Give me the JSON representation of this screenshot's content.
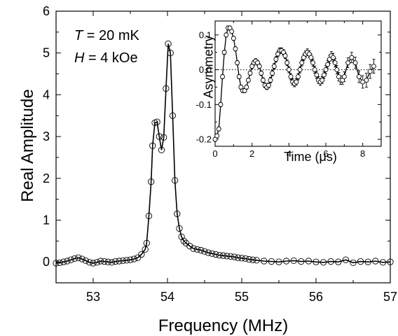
{
  "chart_data": [
    {
      "type": "line",
      "title": "",
      "xlabel": "Frequency (MHz)",
      "ylabel": "Real Amplitude",
      "xlim": [
        52.5,
        57
      ],
      "ylim": [
        -0.5,
        6
      ],
      "xticks": [
        53,
        54,
        55,
        56,
        57
      ],
      "yticks": [
        0,
        1,
        2,
        3,
        4,
        5,
        6
      ],
      "grid": false,
      "annotations": [
        {
          "var": "T",
          "text": " = 20 mK"
        },
        {
          "var": "H",
          "text": " = 4 kOe"
        }
      ],
      "series": [
        {
          "marker": "open-circle",
          "x": [
            52.5,
            52.55,
            52.6,
            52.65,
            52.7,
            52.75,
            52.8,
            52.85,
            52.9,
            52.95,
            53.0,
            53.05,
            53.1,
            53.15,
            53.2,
            53.25,
            53.3,
            53.35,
            53.4,
            53.45,
            53.5,
            53.55,
            53.6,
            53.65,
            53.7,
            53.72,
            53.75,
            53.78,
            53.8,
            53.83,
            53.86,
            53.89,
            53.92,
            53.95,
            53.98,
            54.01,
            54.04,
            54.07,
            54.1,
            54.13,
            54.16,
            54.19,
            54.22,
            54.25,
            54.3,
            54.35,
            54.4,
            54.45,
            54.5,
            54.55,
            54.6,
            54.65,
            54.7,
            54.75,
            54.8,
            54.85,
            54.9,
            54.95,
            55.0,
            55.05,
            55.1,
            55.15,
            55.2,
            55.3,
            55.4,
            55.5,
            55.6,
            55.7,
            55.8,
            55.9,
            56.0,
            56.1,
            56.2,
            56.3,
            56.4,
            56.5,
            56.6,
            56.7,
            56.8,
            56.9,
            57.0
          ],
          "y": [
            -0.03,
            -0.02,
            0.0,
            0.02,
            0.05,
            0.08,
            0.1,
            0.07,
            0.03,
            -0.01,
            -0.03,
            -0.01,
            0.02,
            0.01,
            0.0,
            -0.01,
            0.01,
            0.02,
            0.03,
            0.04,
            0.05,
            0.07,
            0.1,
            0.18,
            0.3,
            0.45,
            1.1,
            1.92,
            2.78,
            3.33,
            3.35,
            3.0,
            2.68,
            2.98,
            4.15,
            5.22,
            5.0,
            3.5,
            1.95,
            1.15,
            0.8,
            0.6,
            0.5,
            0.45,
            0.38,
            0.32,
            0.3,
            0.28,
            0.25,
            0.22,
            0.2,
            0.18,
            0.16,
            0.15,
            0.14,
            0.13,
            0.12,
            0.1,
            0.09,
            0.08,
            0.06,
            0.05,
            0.04,
            0.02,
            0.01,
            0.0,
            0.02,
            0.03,
            0.01,
            0.02,
            0.0,
            -0.01,
            0.01,
            0.0,
            0.05,
            -0.02,
            0.01,
            0.0,
            0.02,
            -0.01,
            0.0
          ]
        }
      ]
    },
    {
      "type": "scatter",
      "title": "",
      "xlabel_prefix": "Time (",
      "xlabel_unit": "μs",
      "xlabel_suffix": ")",
      "ylabel": "Asymmetry",
      "xlim": [
        0,
        9
      ],
      "ylim": [
        -0.22,
        0.14
      ],
      "xticks": [
        0,
        2,
        4,
        6,
        8
      ],
      "yticks": [
        -0.2,
        -0.1,
        0.0,
        0.1
      ],
      "ytick_labels": [
        "-0.2",
        "-0.1",
        "0.0",
        "0.1"
      ],
      "zero_line": "dotted",
      "series": [
        {
          "marker": "open-circle-errorbar",
          "x": [
            0.0,
            0.1,
            0.2,
            0.3,
            0.4,
            0.5,
            0.6,
            0.7,
            0.8,
            0.9,
            1.0,
            1.1,
            1.2,
            1.3,
            1.4,
            1.5,
            1.6,
            1.7,
            1.8,
            1.9,
            2.0,
            2.1,
            2.2,
            2.3,
            2.4,
            2.5,
            2.6,
            2.7,
            2.8,
            2.9,
            3.0,
            3.1,
            3.2,
            3.3,
            3.4,
            3.5,
            3.6,
            3.7,
            3.8,
            3.9,
            4.0,
            4.1,
            4.2,
            4.3,
            4.4,
            4.5,
            4.6,
            4.7,
            4.8,
            4.9,
            5.0,
            5.1,
            5.2,
            5.3,
            5.4,
            5.5,
            5.6,
            5.7,
            5.8,
            5.9,
            6.0,
            6.1,
            6.2,
            6.3,
            6.4,
            6.5,
            6.6,
            6.7,
            6.8,
            6.9,
            7.0,
            7.2,
            7.4,
            7.6,
            7.8,
            8.0,
            8.2,
            8.4,
            8.6
          ],
          "y": [
            -0.2,
            -0.19,
            -0.17,
            -0.1,
            -0.02,
            0.05,
            0.1,
            0.12,
            0.12,
            0.11,
            0.09,
            0.06,
            0.02,
            -0.02,
            -0.05,
            -0.06,
            -0.06,
            -0.05,
            -0.03,
            -0.01,
            0.01,
            0.02,
            0.025,
            0.02,
            0.01,
            -0.01,
            -0.03,
            -0.045,
            -0.05,
            -0.045,
            -0.03,
            -0.01,
            0.01,
            0.03,
            0.045,
            0.055,
            0.055,
            0.05,
            0.04,
            0.02,
            0.0,
            -0.02,
            -0.035,
            -0.04,
            -0.035,
            -0.02,
            0.0,
            0.02,
            0.035,
            0.045,
            0.05,
            0.045,
            0.035,
            0.02,
            0.0,
            -0.015,
            -0.03,
            -0.035,
            -0.03,
            -0.015,
            0.0,
            0.015,
            0.03,
            0.04,
            0.035,
            0.02,
            0.0,
            -0.02,
            -0.03,
            -0.03,
            -0.02,
            0.02,
            0.035,
            0.02,
            -0.02,
            -0.035,
            -0.03,
            -0.005,
            0.01
          ],
          "err": [
            0.006,
            0.006,
            0.006,
            0.006,
            0.006,
            0.006,
            0.006,
            0.006,
            0.006,
            0.006,
            0.006,
            0.006,
            0.006,
            0.006,
            0.006,
            0.006,
            0.006,
            0.006,
            0.006,
            0.006,
            0.007,
            0.007,
            0.007,
            0.007,
            0.007,
            0.007,
            0.007,
            0.007,
            0.007,
            0.007,
            0.008,
            0.008,
            0.008,
            0.008,
            0.008,
            0.008,
            0.008,
            0.008,
            0.008,
            0.008,
            0.009,
            0.009,
            0.009,
            0.009,
            0.009,
            0.009,
            0.009,
            0.009,
            0.009,
            0.009,
            0.01,
            0.01,
            0.01,
            0.01,
            0.01,
            0.01,
            0.01,
            0.01,
            0.01,
            0.01,
            0.012,
            0.012,
            0.012,
            0.012,
            0.012,
            0.012,
            0.012,
            0.012,
            0.012,
            0.012,
            0.014,
            0.014,
            0.015,
            0.016,
            0.017,
            0.018,
            0.02,
            0.02,
            0.02
          ]
        }
      ]
    }
  ]
}
